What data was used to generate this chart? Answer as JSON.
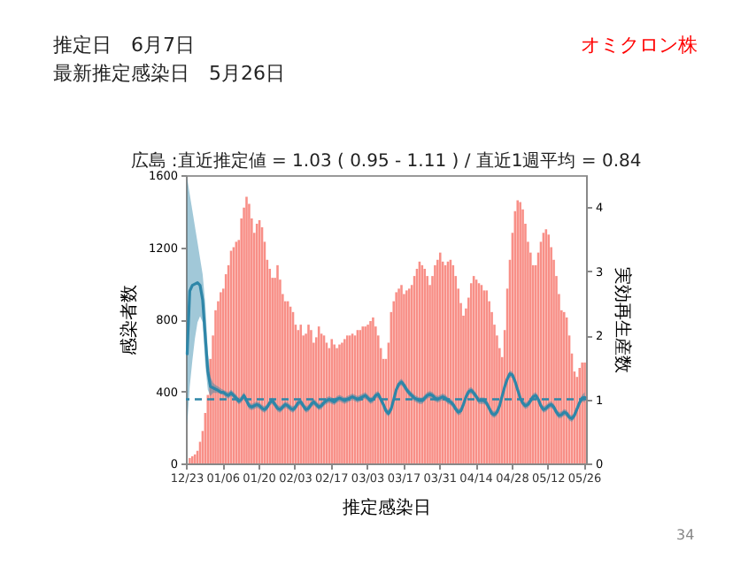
{
  "chart_data": {
    "type": "bar",
    "title": "推定日　6月7日",
    "subtitle": "最新推定感染日　5月26日",
    "annotations": [
      "オミクロン株",
      "広島 :直近推定値 = 1.03 ( 0.95 - 1.11 ) / 直近1週平均 = 0.84",
      "34"
    ],
    "xlabel": "推定感染日",
    "ylabel": "感染者数",
    "y2label": "実効再生産数",
    "categories": [
      "12/23",
      null,
      null,
      null,
      null,
      null,
      null,
      null,
      null,
      null,
      null,
      null,
      null,
      null,
      "01/06",
      null,
      null,
      null,
      null,
      null,
      null,
      null,
      null,
      null,
      null,
      null,
      null,
      null,
      "01/20",
      null,
      null,
      null,
      null,
      null,
      null,
      null,
      null,
      null,
      null,
      null,
      null,
      null,
      "02/03",
      null,
      null,
      null,
      null,
      null,
      null,
      null,
      null,
      null,
      null,
      null,
      null,
      null,
      "02/17",
      null,
      null,
      null,
      null,
      null,
      null,
      null,
      null,
      null,
      null,
      null,
      null,
      null,
      "03/03",
      null,
      null,
      null,
      null,
      null,
      null,
      null,
      null,
      null,
      null,
      null,
      null,
      null,
      "03/17",
      null,
      null,
      null,
      null,
      null,
      null,
      null,
      null,
      null,
      null,
      null,
      null,
      null,
      "03/31",
      null,
      null,
      null,
      null,
      null,
      null,
      null,
      null,
      null,
      null,
      null,
      null,
      null,
      "04/14",
      null,
      null,
      null,
      null,
      null,
      null,
      null,
      null,
      null,
      null,
      null,
      null,
      null,
      "04/28",
      null,
      null,
      null,
      null,
      null,
      null,
      null,
      null,
      null,
      null,
      null,
      null,
      null,
      "05/12",
      null,
      null,
      null,
      null,
      null,
      null,
      null,
      null,
      null,
      null,
      null,
      null,
      null,
      "05/26"
    ],
    "series": [
      {
        "color": "#f88f87",
        "values": [
          0,
          30,
          40,
          50,
          70,
          120,
          180,
          280,
          380,
          580,
          710,
          850,
          900,
          950,
          970,
          1050,
          1100,
          1180,
          1200,
          1230,
          1240,
          1360,
          1420,
          1480,
          1440,
          1360,
          1280,
          1330,
          1350,
          1310,
          1230,
          1130,
          1080,
          1030,
          1030,
          1100,
          1020,
          940,
          900,
          900,
          870,
          840,
          770,
          740,
          770,
          710,
          720,
          770,
          740,
          670,
          700,
          760,
          720,
          710,
          670,
          640,
          690,
          660,
          640,
          660,
          670,
          690,
          710,
          710,
          720,
          710,
          740,
          740,
          760,
          760,
          770,
          790,
          810,
          760,
          710,
          640,
          580,
          580,
          670,
          840,
          900,
          950,
          970,
          990,
          940,
          960,
          970,
          990,
          1040,
          1080,
          1120,
          1100,
          1080,
          1040,
          990,
          1040,
          1100,
          1130,
          1170,
          1120,
          1100,
          1120,
          1130,
          1100,
          1040,
          970,
          890,
          820,
          860,
          920,
          1000,
          1040,
          1020,
          1000,
          990,
          960,
          960,
          900,
          840,
          770,
          710,
          640,
          590,
          740,
          970,
          1130,
          1280,
          1400,
          1460,
          1450,
          1410,
          1330,
          1230,
          1170,
          1100,
          1100,
          1170,
          1230,
          1280,
          1300,
          1270,
          1200,
          1130,
          1040,
          940,
          850,
          840,
          810,
          710,
          610,
          510,
          480,
          530,
          560,
          560
        ]
      },
      {
        "type": "line",
        "axis": "y2",
        "color": "#2e86a8",
        "values": [
          1.71,
          2.69,
          2.78,
          2.8,
          2.82,
          2.78,
          2.55,
          1.99,
          1.44,
          1.2,
          1.18,
          1.16,
          1.14,
          1.11,
          1.11,
          1.08,
          1.06,
          1.1,
          1.06,
          1.02,
          0.97,
          1.0,
          1.06,
          0.98,
          0.9,
          0.88,
          0.9,
          0.92,
          0.9,
          0.86,
          0.84,
          0.88,
          0.95,
          0.98,
          0.92,
          0.86,
          0.84,
          0.88,
          0.92,
          0.9,
          0.86,
          0.84,
          0.88,
          0.95,
          0.96,
          0.9,
          0.84,
          0.86,
          0.92,
          0.96,
          0.92,
          0.88,
          0.9,
          0.95,
          0.98,
          1.0,
          0.98,
          0.96,
          1.0,
          1.02,
          1.0,
          0.98,
          1.0,
          1.02,
          1.04,
          1.02,
          1.0,
          1.02,
          1.04,
          1.06,
          1.02,
          0.98,
          1.0,
          1.06,
          1.08,
          1.0,
          0.92,
          0.82,
          0.78,
          0.85,
          1.0,
          1.15,
          1.24,
          1.27,
          1.22,
          1.15,
          1.1,
          1.06,
          1.02,
          1.0,
          0.98,
          0.98,
          1.02,
          1.06,
          1.08,
          1.06,
          1.02,
          1.0,
          1.02,
          1.04,
          1.02,
          0.98,
          0.96,
          0.92,
          0.85,
          0.8,
          0.82,
          0.92,
          1.04,
          1.12,
          1.14,
          1.1,
          1.04,
          0.98,
          0.98,
          0.98,
          0.94,
          0.86,
          0.78,
          0.76,
          0.8,
          0.9,
          1.05,
          1.2,
          1.32,
          1.4,
          1.38,
          1.28,
          1.15,
          1.02,
          0.94,
          0.9,
          0.92,
          0.98,
          1.04,
          1.06,
          1.0,
          0.9,
          0.84,
          0.86,
          0.9,
          0.92,
          0.88,
          0.8,
          0.75,
          0.76,
          0.8,
          0.78,
          0.72,
          0.7,
          0.75,
          0.85,
          0.95,
          1.02,
          1.03
        ],
        "lower": [
          0.6,
          1.2,
          1.6,
          1.95,
          2.2,
          2.3,
          2.2,
          1.55,
          1.15,
          1.05,
          1.1,
          1.1,
          1.1,
          1.08,
          1.07,
          1.03,
          1.01,
          1.05,
          1.01,
          0.97,
          0.92,
          0.95,
          1.01,
          0.93,
          0.85,
          0.83,
          0.85,
          0.87,
          0.85,
          0.81,
          0.79,
          0.83,
          0.9,
          0.93,
          0.87,
          0.81,
          0.79,
          0.83,
          0.87,
          0.85,
          0.81,
          0.79,
          0.83,
          0.9,
          0.91,
          0.85,
          0.79,
          0.81,
          0.87,
          0.91,
          0.87,
          0.83,
          0.85,
          0.9,
          0.93,
          0.95,
          0.93,
          0.91,
          0.95,
          0.97,
          0.95,
          0.93,
          0.95,
          0.97,
          0.99,
          0.97,
          0.95,
          0.97,
          0.99,
          1.01,
          0.97,
          0.93,
          0.95,
          1.01,
          1.03,
          0.95,
          0.87,
          0.77,
          0.73,
          0.8,
          0.95,
          1.1,
          1.19,
          1.22,
          1.17,
          1.1,
          1.05,
          1.01,
          0.97,
          0.95,
          0.93,
          0.93,
          0.97,
          1.01,
          1.03,
          1.01,
          0.97,
          0.95,
          0.97,
          0.99,
          0.97,
          0.93,
          0.91,
          0.87,
          0.8,
          0.75,
          0.77,
          0.87,
          0.99,
          1.07,
          1.09,
          1.05,
          0.99,
          0.93,
          0.93,
          0.93,
          0.89,
          0.81,
          0.73,
          0.71,
          0.75,
          0.85,
          1.0,
          1.15,
          1.27,
          1.35,
          1.33,
          1.23,
          1.1,
          0.97,
          0.89,
          0.85,
          0.87,
          0.93,
          0.99,
          1.01,
          0.95,
          0.85,
          0.79,
          0.81,
          0.85,
          0.87,
          0.83,
          0.75,
          0.7,
          0.71,
          0.75,
          0.73,
          0.67,
          0.65,
          0.7,
          0.8,
          0.9,
          0.97,
          0.95
        ],
        "upper": [
          4.45,
          4.2,
          3.95,
          3.7,
          3.45,
          3.2,
          2.95,
          2.5,
          1.75,
          1.35,
          1.26,
          1.22,
          1.2,
          1.17,
          1.15,
          1.13,
          1.11,
          1.15,
          1.11,
          1.07,
          1.02,
          1.05,
          1.11,
          1.03,
          0.95,
          0.93,
          0.95,
          0.97,
          0.95,
          0.91,
          0.89,
          0.93,
          1.0,
          1.03,
          0.97,
          0.91,
          0.89,
          0.93,
          0.97,
          0.95,
          0.91,
          0.89,
          0.93,
          1.0,
          1.01,
          0.95,
          0.89,
          0.91,
          0.97,
          1.01,
          0.97,
          0.93,
          0.95,
          1.0,
          1.03,
          1.05,
          1.03,
          1.01,
          1.05,
          1.07,
          1.05,
          1.03,
          1.05,
          1.07,
          1.09,
          1.07,
          1.05,
          1.07,
          1.09,
          1.11,
          1.07,
          1.03,
          1.05,
          1.11,
          1.13,
          1.05,
          0.97,
          0.87,
          0.83,
          0.9,
          1.05,
          1.2,
          1.29,
          1.32,
          1.27,
          1.2,
          1.15,
          1.11,
          1.07,
          1.05,
          1.03,
          1.03,
          1.07,
          1.11,
          1.13,
          1.11,
          1.07,
          1.05,
          1.07,
          1.09,
          1.07,
          1.03,
          1.01,
          0.97,
          0.9,
          0.85,
          0.87,
          0.97,
          1.09,
          1.17,
          1.19,
          1.15,
          1.09,
          1.03,
          1.03,
          1.03,
          0.99,
          0.91,
          0.83,
          0.81,
          0.85,
          0.95,
          1.1,
          1.25,
          1.37,
          1.45,
          1.43,
          1.33,
          1.2,
          1.07,
          0.99,
          0.95,
          0.97,
          1.03,
          1.09,
          1.11,
          1.05,
          0.95,
          0.89,
          0.91,
          0.95,
          0.97,
          0.93,
          0.85,
          0.8,
          0.81,
          0.85,
          0.83,
          0.77,
          0.75,
          0.8,
          0.9,
          1.0,
          1.07,
          1.11
        ]
      }
    ],
    "ylim": [
      0,
      1600
    ],
    "yticks": [
      0,
      400,
      800,
      1200,
      1600
    ],
    "y2lim": [
      0,
      4.5
    ],
    "y2ticks": [
      0,
      1,
      2,
      3,
      4
    ],
    "ref_lines": [
      {
        "axis": "y2",
        "value": 1,
        "color": "#2e86a8",
        "line_style": "dashed"
      }
    ]
  }
}
